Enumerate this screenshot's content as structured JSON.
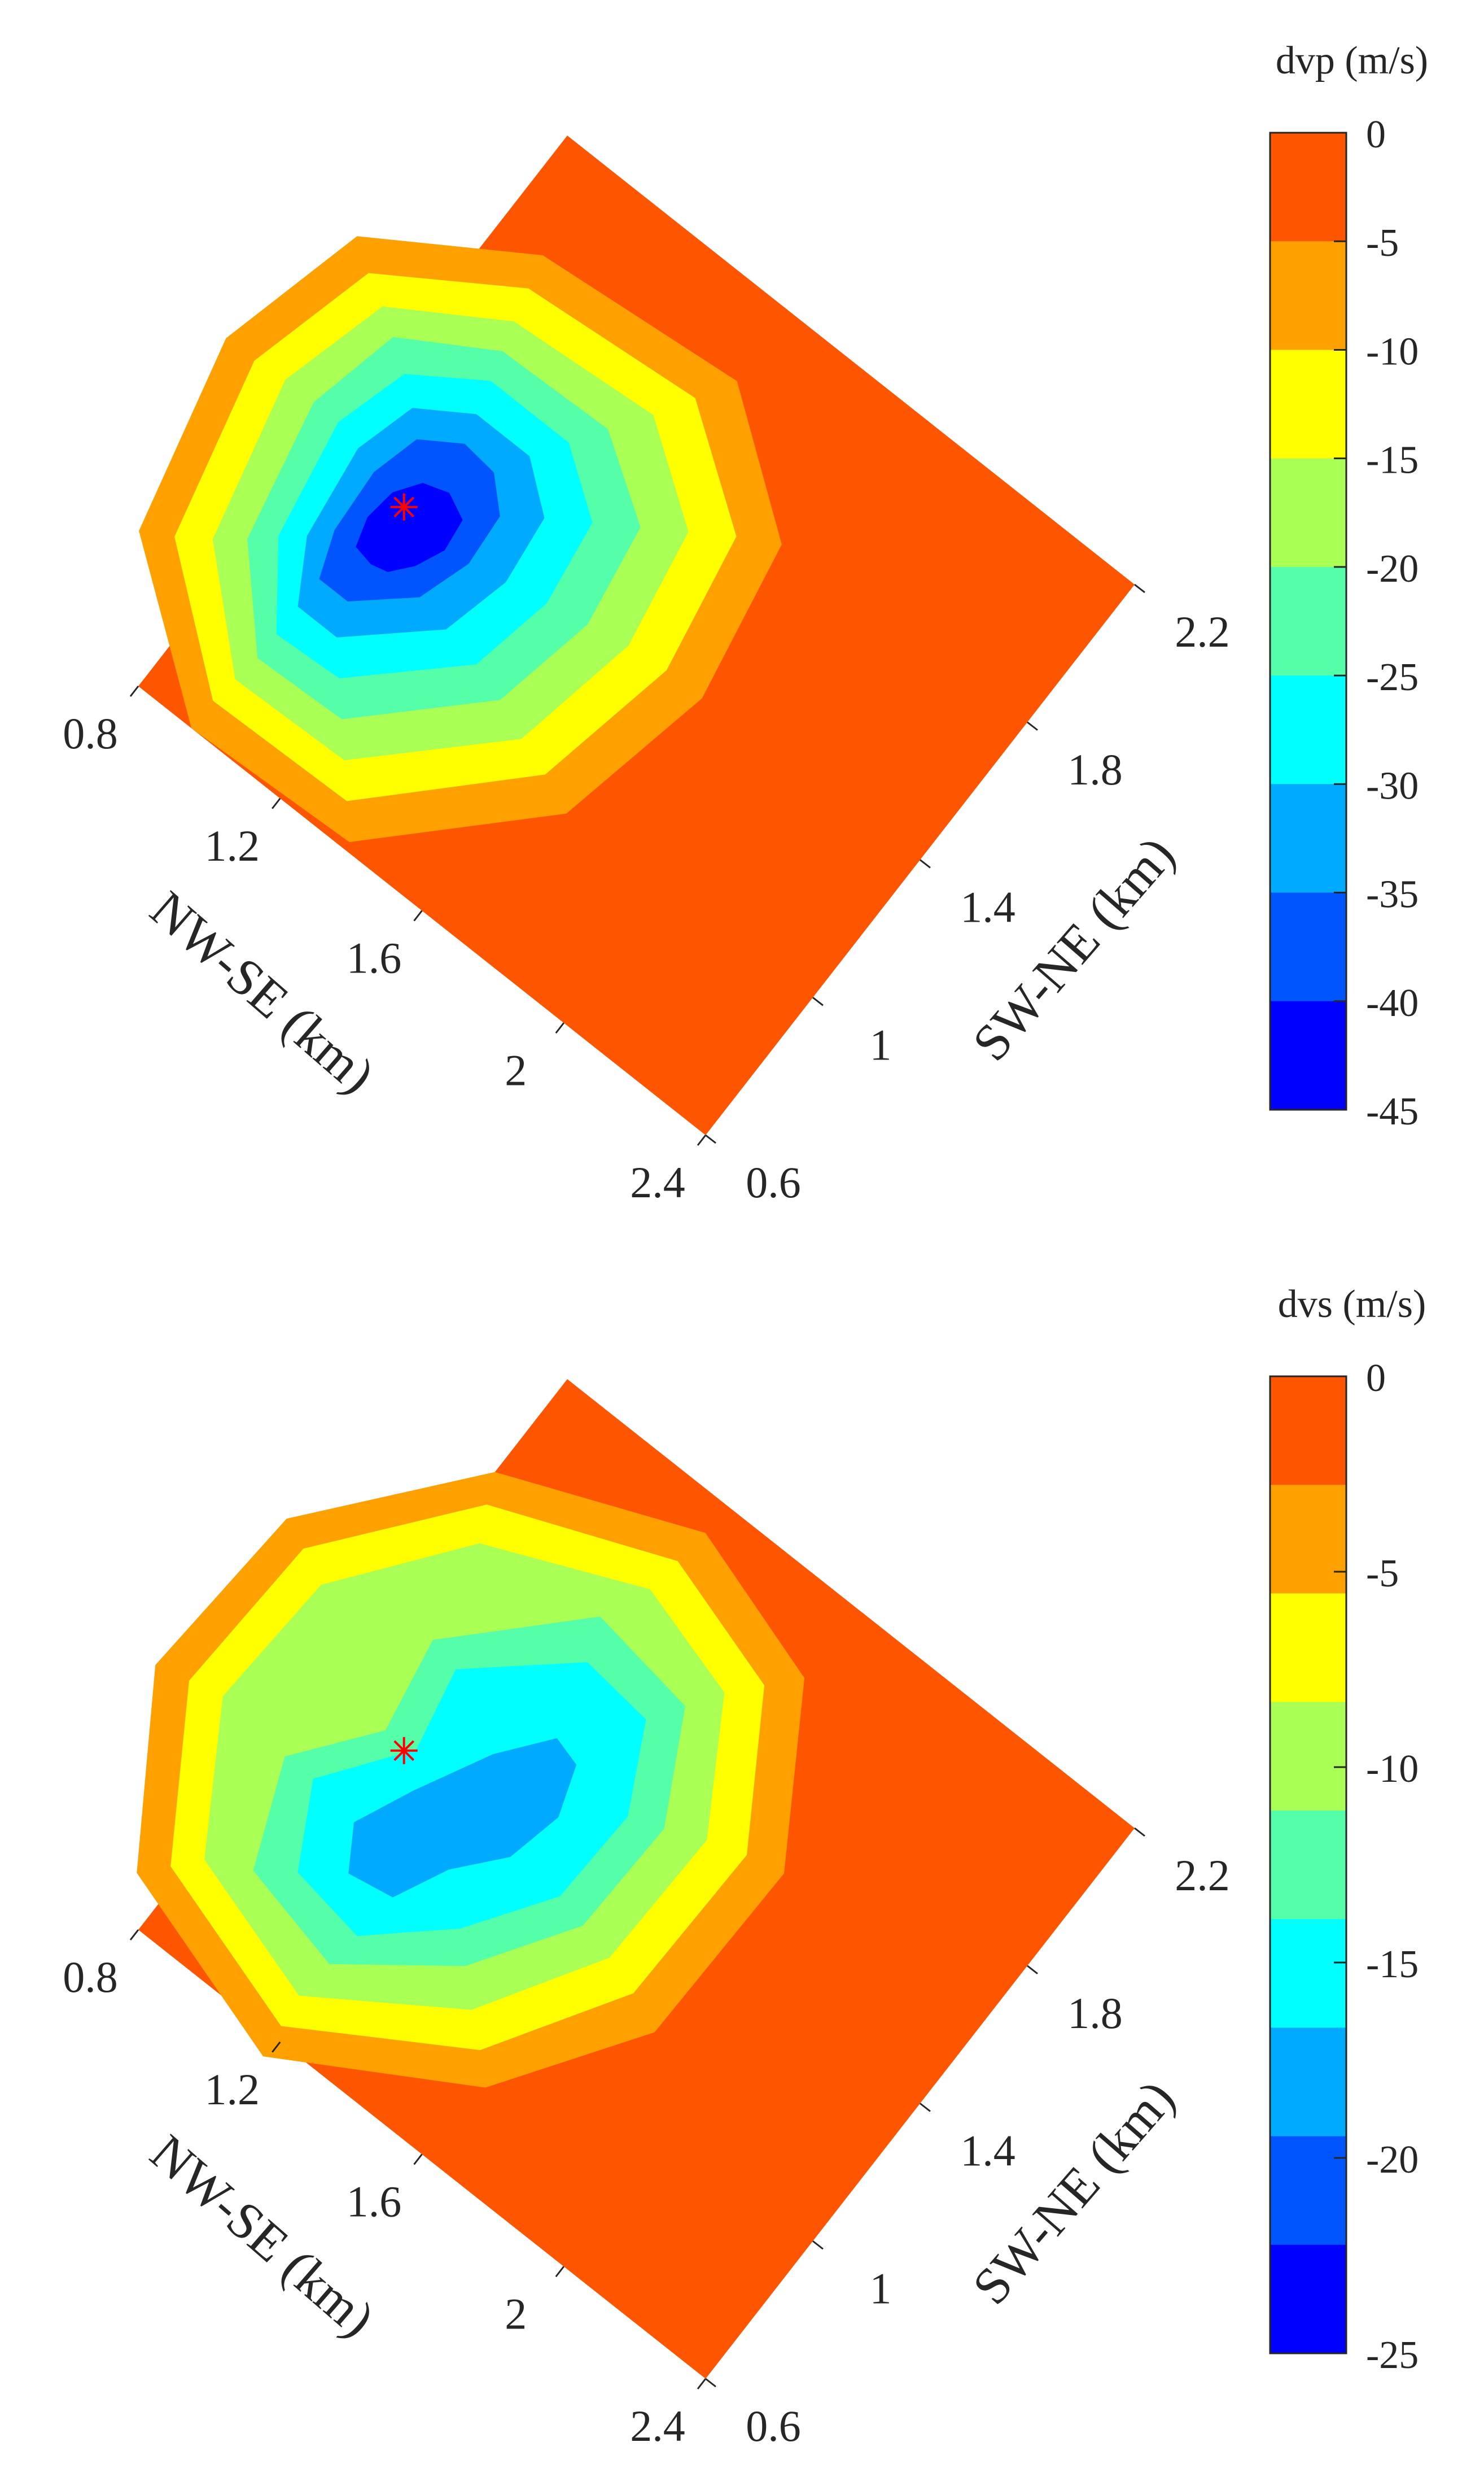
{
  "chart_data": [
    {
      "type": "heatmap",
      "colorbar": {
        "title": "dvp (m/s)",
        "ticks": [
          "0",
          "-5",
          "-10",
          "-15",
          "-20",
          "-25",
          "-30",
          "-35",
          "-40",
          "-45"
        ],
        "range": [
          -45,
          0
        ],
        "band_colors": [
          "#fe5500",
          "#fea000",
          "#ffff00",
          "#aaff55",
          "#55ffaa",
          "#00ffff",
          "#00aaff",
          "#0055ff",
          "#0000ff"
        ]
      },
      "nwse_axis": {
        "label": "NW-SE (km)",
        "ticks": [
          "0.8",
          "1.2",
          "1.6",
          "2",
          "2.4"
        ],
        "range": [
          0.8,
          2.4
        ]
      },
      "swne_axis": {
        "label": "SW-NE (km)",
        "ticks": [
          "0.6",
          "1",
          "1.4",
          "1.8",
          "2.2"
        ],
        "range": [
          0.6,
          2.2
        ]
      },
      "marker": {
        "symbol": "*",
        "color": "#ff0000"
      },
      "contours": [
        {
          "level": "-5",
          "color": "#fea000",
          "points": [
            [
              1.38,
              0.02
            ],
            [
              0.95,
              0.0
            ],
            [
              0.59,
              0.28
            ],
            [
              0.48,
              0.75
            ],
            [
              0.57,
              1.12
            ],
            [
              0.92,
              1.35
            ],
            [
              1.43,
              1.4
            ],
            [
              1.73,
              1.17
            ],
            [
              1.8,
              0.78
            ],
            [
              1.72,
              0.38
            ]
          ]
        },
        {
          "level": "-10",
          "color": "#ffff00",
          "points": [
            [
              1.32,
              0.09
            ],
            [
              0.95,
              0.08
            ],
            [
              0.66,
              0.32
            ],
            [
              0.56,
              0.75
            ],
            [
              0.64,
              1.07
            ],
            [
              0.94,
              1.27
            ],
            [
              1.38,
              1.31
            ],
            [
              1.64,
              1.12
            ],
            [
              1.7,
              0.78
            ],
            [
              1.63,
              0.42
            ]
          ]
        },
        {
          "level": "-15",
          "color": "#aaff55",
          "points": [
            [
              1.26,
              0.16
            ],
            [
              0.96,
              0.15
            ],
            [
              0.73,
              0.37
            ],
            [
              0.64,
              0.76
            ],
            [
              0.71,
              1.03
            ],
            [
              0.96,
              1.19
            ],
            [
              1.33,
              1.22
            ],
            [
              1.55,
              1.06
            ],
            [
              1.6,
              0.77
            ],
            [
              1.54,
              0.45
            ]
          ]
        },
        {
          "level": "-20",
          "color": "#55ffaa",
          "points": [
            [
              1.2,
              0.23
            ],
            [
              0.97,
              0.22
            ],
            [
              0.79,
              0.42
            ],
            [
              0.72,
              0.76
            ],
            [
              0.77,
              0.99
            ],
            [
              0.98,
              1.12
            ],
            [
              1.27,
              1.13
            ],
            [
              1.46,
              1.0
            ],
            [
              1.5,
              0.75
            ],
            [
              1.45,
              0.49
            ]
          ]
        },
        {
          "level": "-25",
          "color": "#00ffff",
          "points": [
            [
              1.14,
              0.3
            ],
            [
              0.97,
              0.29
            ],
            [
              0.84,
              0.47
            ],
            [
              0.79,
              0.76
            ],
            [
              0.84,
              0.94
            ],
            [
              1.0,
              1.05
            ],
            [
              1.22,
              1.05
            ],
            [
              1.37,
              0.94
            ],
            [
              1.4,
              0.73
            ],
            [
              1.36,
              0.52
            ]
          ]
        },
        {
          "level": "-30",
          "color": "#00aaff",
          "points": [
            [
              1.08,
              0.37
            ],
            [
              0.97,
              0.37
            ],
            [
              0.89,
              0.51
            ],
            [
              0.86,
              0.74
            ],
            [
              0.9,
              0.89
            ],
            [
              1.02,
              0.97
            ],
            [
              1.17,
              0.97
            ],
            [
              1.28,
              0.88
            ],
            [
              1.3,
              0.71
            ],
            [
              1.26,
              0.54
            ]
          ]
        },
        {
          "level": "-35",
          "color": "#0055ff",
          "points": [
            [
              1.05,
              0.45
            ],
            [
              0.97,
              0.45
            ],
            [
              0.93,
              0.56
            ],
            [
              0.92,
              0.72
            ],
            [
              0.95,
              0.84
            ],
            [
              1.04,
              0.9
            ],
            [
              1.13,
              0.89
            ],
            [
              1.2,
              0.82
            ],
            [
              1.21,
              0.69
            ],
            [
              1.17,
              0.56
            ]
          ]
        },
        {
          "level": "-40",
          "color": "#0000ff",
          "points": [
            [
              1.04,
              0.55
            ],
            [
              0.99,
              0.56
            ],
            [
              0.97,
              0.63
            ],
            [
              0.98,
              0.71
            ],
            [
              1.02,
              0.77
            ],
            [
              1.08,
              0.79
            ],
            [
              1.14,
              0.76
            ],
            [
              1.15,
              0.68
            ],
            [
              1.12,
              0.61
            ],
            [
              1.08,
              0.56
            ]
          ]
        }
      ],
      "marker_position": [
        1.02,
        0.7
      ]
    },
    {
      "type": "heatmap",
      "colorbar": {
        "title": "dvs (m/s)",
        "ticks": [
          "0",
          "-5",
          "-10",
          "-15",
          "-20",
          "-25"
        ],
        "range": [
          -25,
          0
        ],
        "band_colors": [
          "#fe5500",
          "#fea000",
          "#ffff00",
          "#aaff55",
          "#55ffaa",
          "#00ffff",
          "#00aaff",
          "#0055ff",
          "#0000ff"
        ]
      },
      "nwse_axis": {
        "label": "NW-SE (km)",
        "ticks": [
          "0.8",
          "1.2",
          "1.6",
          "2",
          "2.4"
        ],
        "range": [
          0.8,
          2.4
        ]
      },
      "swne_axis": {
        "label": "SW-NE (km)",
        "ticks": [
          "0.6",
          "1",
          "1.4",
          "1.8",
          "2.2"
        ],
        "range": [
          0.6,
          2.2
        ]
      },
      "marker": {
        "symbol": "*",
        "color": "#ff0000"
      },
      "contours": [
        {
          "level": "-2.5",
          "color": "#fea000",
          "points": [
            [
              1.62,
              0.21
            ],
            [
              1.19,
              -0.05
            ],
            [
              0.72,
              0.1
            ],
            [
              0.47,
              0.5
            ],
            [
              0.5,
              0.95
            ],
            [
              0.8,
              1.33
            ],
            [
              1.25,
              1.52
            ],
            [
              1.62,
              1.4
            ],
            [
              1.85,
              1.02
            ],
            [
              1.84,
              0.55
            ]
          ]
        },
        {
          "level": "-5",
          "color": "#ffff00",
          "points": [
            [
              1.56,
              0.27
            ],
            [
              1.18,
              0.03
            ],
            [
              0.77,
              0.16
            ],
            [
              0.55,
              0.52
            ],
            [
              0.57,
              0.92
            ],
            [
              0.83,
              1.26
            ],
            [
              1.24,
              1.43
            ],
            [
              1.56,
              1.33
            ],
            [
              1.76,
              1.0
            ],
            [
              1.75,
              0.59
            ]
          ]
        },
        {
          "level": "-7.5",
          "color": "#aaff55",
          "points": [
            [
              1.49,
              0.33
            ],
            [
              1.17,
              0.11
            ],
            [
              0.82,
              0.22
            ],
            [
              0.63,
              0.54
            ],
            [
              0.65,
              0.88
            ],
            [
              0.87,
              1.18
            ],
            [
              1.23,
              1.34
            ],
            [
              1.5,
              1.26
            ],
            [
              1.67,
              0.97
            ],
            [
              1.66,
              0.62
            ]
          ]
        },
        {
          "level": "-10",
          "color": "#55ffaa",
          "points": [
            [
              1.42,
              0.4
            ],
            [
              1.18,
              0.21
            ],
            [
              0.92,
              0.27
            ],
            [
              0.82,
              0.52
            ],
            [
              0.96,
              0.71
            ],
            [
              0.92,
              0.94
            ],
            [
              1.18,
              1.22
            ],
            [
              1.45,
              1.18
            ],
            [
              1.58,
              0.93
            ],
            [
              1.57,
              0.64
            ]
          ]
        },
        {
          "level": "-12.5",
          "color": "#00ffff",
          "points": [
            [
              1.36,
              0.46
            ],
            [
              1.19,
              0.3
            ],
            [
              1.0,
              0.33
            ],
            [
              0.9,
              0.52
            ],
            [
              1.04,
              0.72
            ],
            [
              1.0,
              0.92
            ],
            [
              1.22,
              1.12
            ],
            [
              1.4,
              1.1
            ],
            [
              1.5,
              0.9
            ],
            [
              1.49,
              0.66
            ]
          ]
        },
        {
          "level": "-17.5",
          "color": "#00aaff",
          "points": [
            [
              1.26,
              0.55
            ],
            [
              1.2,
              0.42
            ],
            [
              1.09,
              0.4
            ],
            [
              1.03,
              0.5
            ],
            [
              1.09,
              0.64
            ],
            [
              1.18,
              0.82
            ],
            [
              1.27,
              0.94
            ],
            [
              1.34,
              0.92
            ],
            [
              1.38,
              0.8
            ],
            [
              1.35,
              0.66
            ]
          ]
        }
      ],
      "marker_position": [
        1.02,
        0.7
      ]
    }
  ]
}
